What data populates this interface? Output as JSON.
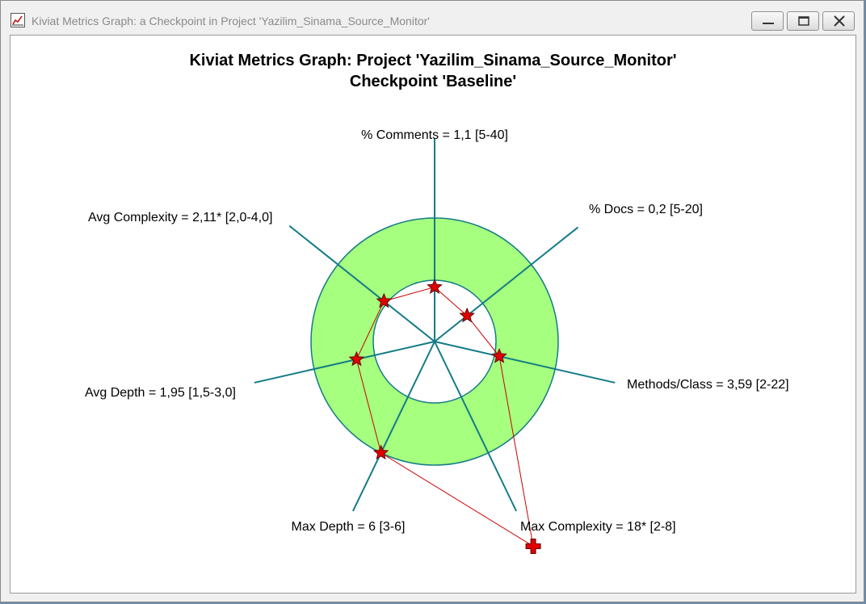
{
  "window": {
    "title": "Kiviat Metrics Graph: a Checkpoint in Project 'Yazilim_Sinama_Source_Monitor'"
  },
  "icons": {
    "app": "chart-icon",
    "minimize": "minimize-icon",
    "maximize": "maximize-icon",
    "close": "close-icon"
  },
  "colors": {
    "band_fill": "#a6ff7e",
    "axis": "#137b86",
    "polygon": "#cc0000",
    "marker": "#e00000"
  },
  "chart_data": {
    "type": "radar",
    "title": "Kiviat Metrics Graph: Project 'Yazilim_Sinama_Source_Monitor'",
    "subtitle": "Checkpoint 'Baseline'",
    "axes": [
      {
        "metric": "% Comments",
        "value": 1.1,
        "flag": "",
        "range": [
          5,
          40
        ],
        "label": "% Comments = 1,1 [5-40]"
      },
      {
        "metric": "% Docs",
        "value": 0.2,
        "flag": "",
        "range": [
          5,
          20
        ],
        "label": "% Docs = 0,2 [5-20]"
      },
      {
        "metric": "Methods/Class",
        "value": 3.59,
        "flag": "",
        "range": [
          2,
          22
        ],
        "label": "Methods/Class = 3,59 [2-22]"
      },
      {
        "metric": "Max Complexity",
        "value": 18,
        "flag": "*",
        "range": [
          2,
          8
        ],
        "label": "Max Complexity = 18* [2-8]"
      },
      {
        "metric": "Max Depth",
        "value": 6,
        "flag": "",
        "range": [
          3,
          6
        ],
        "label": "Max Depth = 6 [3-6]"
      },
      {
        "metric": "Avg Depth",
        "value": 1.95,
        "flag": "",
        "range": [
          1.5,
          3.0
        ],
        "label": "Avg Depth = 1,95 [1,5-3,0]"
      },
      {
        "metric": "Avg Complexity",
        "value": 2.11,
        "flag": "*",
        "range": [
          2.0,
          4.0
        ],
        "label": "Avg Complexity = 2,11* [2,0-4,0]"
      }
    ],
    "normal_band": "within range",
    "out_of_range_marker": "cross"
  }
}
